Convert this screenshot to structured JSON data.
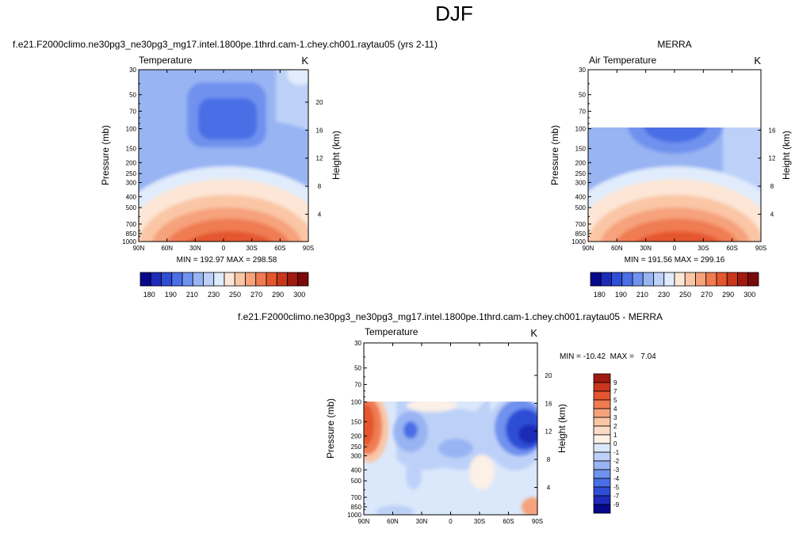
{
  "figure": {
    "suptitle": "DJF"
  },
  "chart_data": [
    {
      "type": "heatmap",
      "title": "f.e21.F2000climo.ne30pg3_ne30pg3_mg17.intel.1800pe.1thrd.cam-1.chey.ch001.raytau05 (yrs 2-11)",
      "left_string": "Temperature",
      "right_string": "K",
      "ylabel": "Pressure (mb)",
      "ylabel_right": "Height (km)",
      "x_ticks": [
        "90N",
        "60N",
        "30N",
        "0",
        "30S",
        "60S",
        "90S"
      ],
      "y_ticks": [
        "30",
        "50",
        "70",
        "100",
        "150",
        "200",
        "250",
        "300",
        "400",
        "500",
        "700",
        "850",
        "1000"
      ],
      "y_ticks_right": [
        "20",
        "16",
        "12",
        "8",
        "4"
      ],
      "xlim": [
        90,
        -90
      ],
      "ylim": [
        1000,
        30
      ],
      "y_scale": "log",
      "data_top_mb": 30,
      "stats": "MIN = 192.97  MAX = 298.58",
      "colorbar": {
        "orientation": "horizontal",
        "labels": [
          "180",
          "190",
          "210",
          "230",
          "250",
          "270",
          "290",
          "300"
        ],
        "colors": [
          "#08088a",
          "#1d2bb8",
          "#2f4ed6",
          "#4a6ee6",
          "#6f92ee",
          "#98b4f3",
          "#bdd1f8",
          "#e0ecfc",
          "#fde6d5",
          "#fac6a6",
          "#f6a27b",
          "#f07b52",
          "#e4572e",
          "#c9361b",
          "#a11a10",
          "#7a0a08"
        ]
      }
    },
    {
      "type": "heatmap",
      "title": "MERRA",
      "left_string": "Air Temperature",
      "right_string": "K",
      "ylabel": "Pressure (mb)",
      "ylabel_right": "Height (km)",
      "x_ticks": [
        "90N",
        "60N",
        "30N",
        "0",
        "30S",
        "60S",
        "90S"
      ],
      "y_ticks": [
        "30",
        "50",
        "70",
        "100",
        "150",
        "200",
        "250",
        "300",
        "400",
        "500",
        "700",
        "850",
        "1000"
      ],
      "y_ticks_right": [
        "16",
        "12",
        "8",
        "4"
      ],
      "xlim": [
        90,
        -90
      ],
      "ylim": [
        1000,
        30
      ],
      "y_scale": "log",
      "data_top_mb": 100,
      "stats": "MIN = 191.56  MAX = 299.16",
      "colorbar": {
        "orientation": "horizontal",
        "labels": [
          "180",
          "190",
          "210",
          "230",
          "250",
          "270",
          "290",
          "300"
        ],
        "colors": [
          "#08088a",
          "#1d2bb8",
          "#2f4ed6",
          "#4a6ee6",
          "#6f92ee",
          "#98b4f3",
          "#bdd1f8",
          "#e0ecfc",
          "#fde6d5",
          "#fac6a6",
          "#f6a27b",
          "#f07b52",
          "#e4572e",
          "#c9361b",
          "#a11a10",
          "#7a0a08"
        ]
      }
    },
    {
      "type": "heatmap",
      "title": "f.e21.F2000climo.ne30pg3_ne30pg3_mg17.intel.1800pe.1thrd.cam-1.chey.ch001.raytau05 - MERRA",
      "left_string": "Temperature",
      "right_string": "K",
      "ylabel": "Pressure (mb)",
      "ylabel_right": "Height (km)",
      "x_ticks": [
        "90N",
        "60N",
        "30N",
        "0",
        "30S",
        "60S",
        "90S"
      ],
      "y_ticks": [
        "30",
        "50",
        "70",
        "100",
        "150",
        "200",
        "250",
        "300",
        "400",
        "500",
        "700",
        "850",
        "1000"
      ],
      "y_ticks_right": [
        "20",
        "16",
        "12",
        "8",
        "4"
      ],
      "xlim": [
        90,
        -90
      ],
      "ylim": [
        1000,
        30
      ],
      "y_scale": "log",
      "data_top_mb": 100,
      "stats": "MIN = -10.42  MAX =   7.04",
      "colorbar": {
        "orientation": "vertical",
        "labels": [
          "9",
          "7",
          "5",
          "4",
          "3",
          "2",
          "1",
          "0",
          "-1",
          "-2",
          "-3",
          "-4",
          "-5",
          "-7",
          "-9"
        ],
        "colors": [
          "#a11a10",
          "#c9361b",
          "#e4572e",
          "#f07b52",
          "#f6a27b",
          "#fac6a6",
          "#fcdcc6",
          "#fdf0e6",
          "#dbe8fb",
          "#bdd1f8",
          "#98b4f3",
          "#6f92ee",
          "#4a6ee6",
          "#2f4ed6",
          "#1d2bb8",
          "#08088a"
        ]
      }
    }
  ]
}
